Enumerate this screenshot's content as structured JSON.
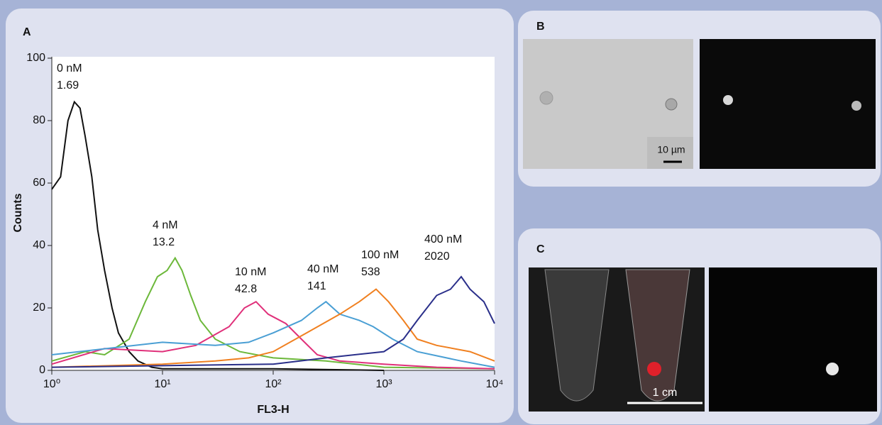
{
  "chart_data": {
    "type": "line",
    "panel_labels": [
      "A",
      "B",
      "C"
    ],
    "xlabel": "FL3-H",
    "ylabel": "Counts",
    "xscale": "log",
    "xlim": [
      1,
      10000
    ],
    "ylim": [
      0,
      100
    ],
    "xticks": [
      {
        "value": 1,
        "label": "10⁰"
      },
      {
        "value": 10,
        "label": "10¹"
      },
      {
        "value": 100,
        "label": "10²"
      },
      {
        "value": 1000,
        "label": "10³"
      },
      {
        "value": 10000,
        "label": "10⁴"
      }
    ],
    "yticks": [
      0,
      20,
      40,
      60,
      80,
      100
    ],
    "series": [
      {
        "name": "0 nM",
        "label": "1.69",
        "color": "#111111",
        "x": [
          1,
          1.2,
          1.4,
          1.6,
          1.8,
          2,
          2.3,
          2.6,
          3,
          3.5,
          4,
          5,
          6,
          8,
          10,
          100,
          1000
        ],
        "values": [
          58,
          62,
          80,
          86,
          84,
          75,
          62,
          45,
          32,
          20,
          12,
          6,
          3,
          1,
          0.5,
          0.5,
          0
        ]
      },
      {
        "name": "4 nM",
        "label": "13.2",
        "color": "#6cb83a",
        "x": [
          1,
          2,
          3,
          5,
          7,
          9,
          11,
          13,
          15,
          18,
          22,
          30,
          50,
          100,
          300,
          1000,
          10000
        ],
        "values": [
          3,
          6,
          5,
          10,
          22,
          30,
          32,
          36,
          32,
          24,
          16,
          10,
          6,
          4,
          3,
          1,
          0.5
        ]
      },
      {
        "name": "10 nM",
        "label": "42.8",
        "color": "#e0307a",
        "x": [
          1,
          3,
          10,
          20,
          40,
          55,
          70,
          90,
          130,
          180,
          250,
          400,
          1000,
          3000,
          10000
        ],
        "values": [
          2,
          7,
          6,
          8,
          14,
          20,
          22,
          18,
          15,
          10,
          5,
          3,
          2,
          1,
          0.5
        ]
      },
      {
        "name": "40 nM",
        "label": "141",
        "color": "#4a9fd4",
        "x": [
          1,
          10,
          30,
          60,
          100,
          180,
          250,
          300,
          400,
          600,
          800,
          1200,
          2000,
          5000,
          10000
        ],
        "values": [
          5,
          9,
          8,
          9,
          12,
          16,
          20,
          22,
          18,
          16,
          14,
          10,
          6,
          3,
          1
        ]
      },
      {
        "name": "100 nM",
        "label": "538",
        "color": "#f08020",
        "x": [
          1,
          10,
          30,
          60,
          100,
          200,
          400,
          600,
          850,
          1100,
          1500,
          2000,
          3000,
          6000,
          10000
        ],
        "values": [
          1,
          2,
          3,
          4,
          6,
          12,
          18,
          22,
          26,
          22,
          16,
          10,
          8,
          6,
          3
        ]
      },
      {
        "name": "400 nM",
        "label": "2020",
        "color": "#2a2f8a",
        "x": [
          1,
          100,
          300,
          1000,
          1500,
          2000,
          3000,
          4000,
          5000,
          6000,
          8000,
          10000
        ],
        "values": [
          1,
          2,
          4,
          6,
          10,
          16,
          24,
          26,
          30,
          26,
          22,
          15
        ]
      }
    ],
    "scale_bars": [
      "10 µm",
      "1 cm"
    ]
  }
}
